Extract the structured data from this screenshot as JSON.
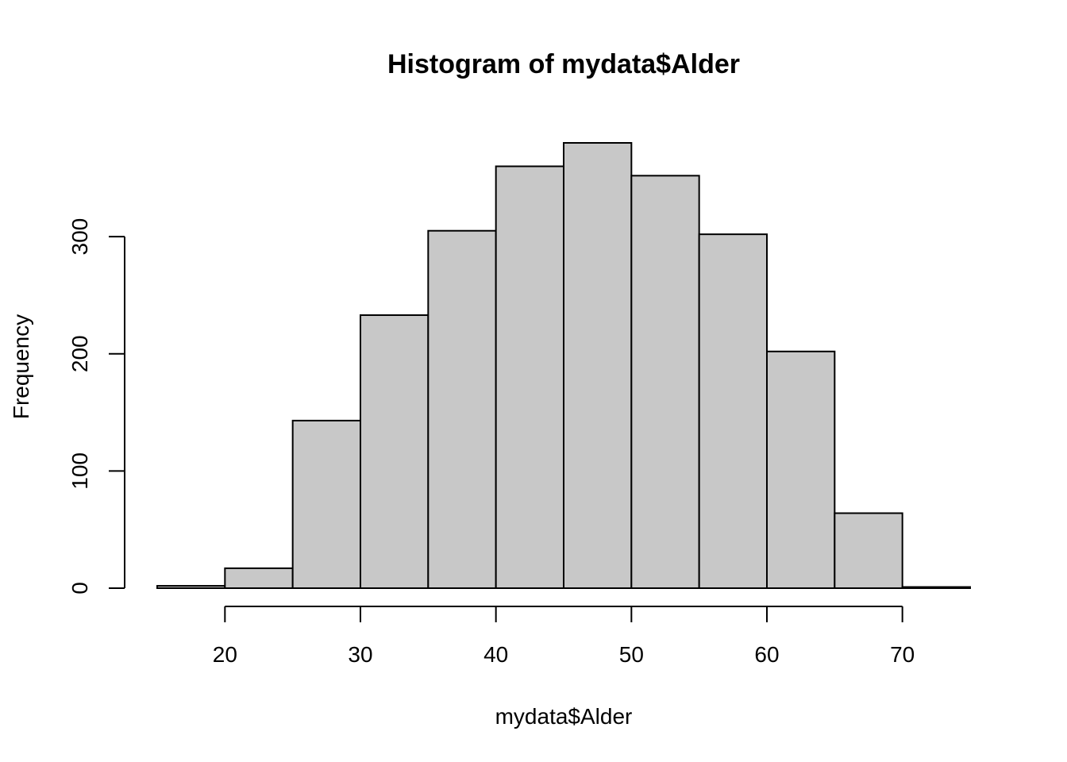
{
  "chart_data": {
    "type": "bar",
    "title": "Histogram of mydata$Alder",
    "xlabel": "mydata$Alder",
    "ylabel": "Frequency",
    "bins": [
      {
        "start": 15,
        "end": 20,
        "count": 2
      },
      {
        "start": 20,
        "end": 25,
        "count": 17
      },
      {
        "start": 25,
        "end": 30,
        "count": 143
      },
      {
        "start": 30,
        "end": 35,
        "count": 233
      },
      {
        "start": 35,
        "end": 40,
        "count": 305
      },
      {
        "start": 40,
        "end": 45,
        "count": 360
      },
      {
        "start": 45,
        "end": 50,
        "count": 380
      },
      {
        "start": 50,
        "end": 55,
        "count": 352
      },
      {
        "start": 55,
        "end": 60,
        "count": 302
      },
      {
        "start": 60,
        "end": 65,
        "count": 202
      },
      {
        "start": 65,
        "end": 70,
        "count": 64
      },
      {
        "start": 70,
        "end": 75,
        "count": 1
      }
    ],
    "xlim": [
      15,
      75
    ],
    "ylim": [
      0,
      380
    ],
    "x_ticks": [
      20,
      30,
      40,
      50,
      60,
      70
    ],
    "y_ticks": [
      0,
      100,
      200,
      300
    ],
    "bar_fill": "#c8c8c8",
    "bar_stroke": "#000000",
    "grid": false,
    "legend": "none"
  }
}
